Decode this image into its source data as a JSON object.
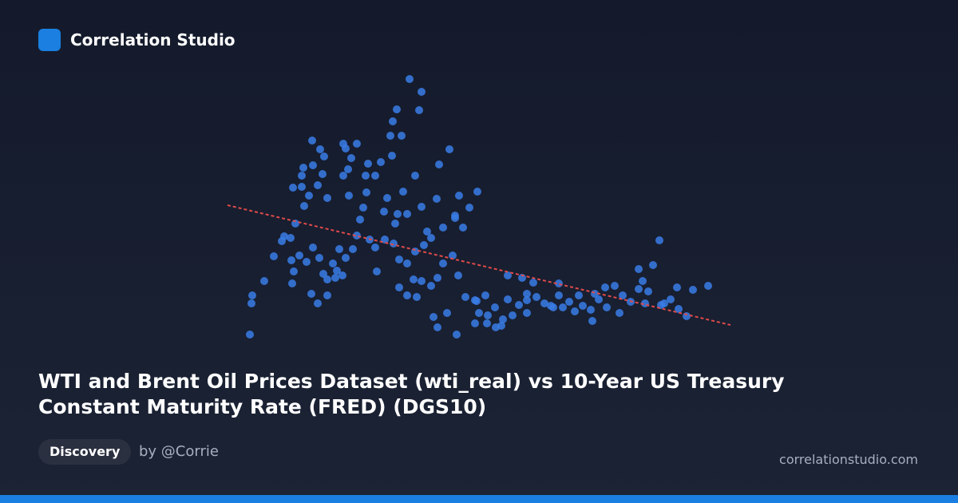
{
  "header": {
    "brand": "Correlation Studio"
  },
  "footer": {
    "badge": "Discovery",
    "author": "by @Corrie",
    "site": "correlationstudio.com"
  },
  "chart_data": {
    "type": "scatter",
    "title": "WTI and Brent Oil Prices Dataset (wti_real) vs 10-Year US Treasury Constant Maturity Rate (FRED) (DGS10)",
    "xlim": [
      280,
      920
    ],
    "ylim": [
      0,
      350
    ],
    "series": [
      {
        "color": "#3a7ce6",
        "x": [
          313,
          316,
          315,
          331,
          343,
          356,
          366,
          368,
          365,
          364,
          370,
          367,
          378,
          378,
          391,
          401,
          406,
          392,
          380,
          387,
          398,
          404,
          410,
          381,
          375,
          384,
          392,
          400,
          405,
          410,
          417,
          422,
          429,
          425,
          433,
          442,
          447,
          451,
          455,
          459,
          437,
          430,
          433,
          447,
          440,
          436,
          461,
          470,
          477,
          491,
          497,
          492,
          503,
          489,
          513,
          528,
          525,
          563,
          550,
          520,
          505,
          485,
          481,
          498,
          510,
          528,
          547,
          575,
          598,
          588,
          570,
          555,
          540,
          531,
          520,
          510,
          500,
          493,
          482,
          470,
          463,
          472,
          500,
          510,
          522,
          540,
          548,
          555,
          567,
          574,
          543,
          548,
          572,
          560,
          583,
          597,
          600,
          611,
          621,
          630,
          642,
          636,
          650,
          660,
          672,
          682,
          693,
          700,
          713,
          720,
          730,
          740,
          742,
          750,
          758,
          770,
          780,
          790,
          800,
          805,
          818,
          812,
          826,
          828,
          840,
          848,
          850,
          860,
          868,
          887,
          832,
          700,
          668,
          654,
          636,
          620,
          608,
          595,
          595,
          610,
          628,
          660,
          690,
          725,
          760,
          776,
          800,
          808,
          420,
          410,
          398,
          390,
          353,
          430,
          458,
          495,
          535,
          570,
          580,
          518,
          528,
          660,
          745,
          705
        ],
        "values": [
          21,
          70,
          60,
          88,
          119,
          144,
          85,
          100,
          114,
          142,
          160,
          205,
          206,
          220,
          264,
          253,
          244,
          233,
          230,
          195,
          208,
          222,
          192,
          182,
          120,
          112,
          130,
          117,
          97,
          90,
          110,
          101,
          95,
          128,
          117,
          128,
          145,
          165,
          180,
          199,
          195,
          220,
          254,
          260,
          242,
          228,
          235,
          220,
          237,
          245,
          303,
          288,
          270,
          270,
          341,
          325,
          302,
          253,
          234,
          220,
          200,
          192,
          175,
          172,
          172,
          181,
          191,
          195,
          200,
          180,
          167,
          155,
          142,
          133,
          125,
          110,
          115,
          135,
          140,
          130,
          140,
          100,
          80,
          70,
          68,
          82,
          92,
          110,
          120,
          95,
          43,
          30,
          21,
          48,
          68,
          63,
          48,
          45,
          30,
          40,
          45,
          65,
          58,
          72,
          68,
          60,
          55,
          70,
          62,
          50,
          57,
          52,
          38,
          65,
          80,
          82,
          70,
          62,
          103,
          88,
          108,
          75,
          139,
          58,
          65,
          80,
          53,
          44,
          77,
          82,
          60,
          85,
          86,
          92,
          95,
          55,
          70,
          64,
          35,
          35,
          32,
          48,
          57,
          70,
          55,
          48,
          78,
          60,
          92,
          70,
          60,
          72,
          138,
          260,
          220,
          160,
          150,
          170,
          155,
          90,
          88,
          64,
          72,
          55
        ]
      }
    ],
    "trendline": {
      "color": "#e04a4a",
      "x": [
        285,
        915
      ],
      "values": [
        183,
        33
      ]
    }
  }
}
